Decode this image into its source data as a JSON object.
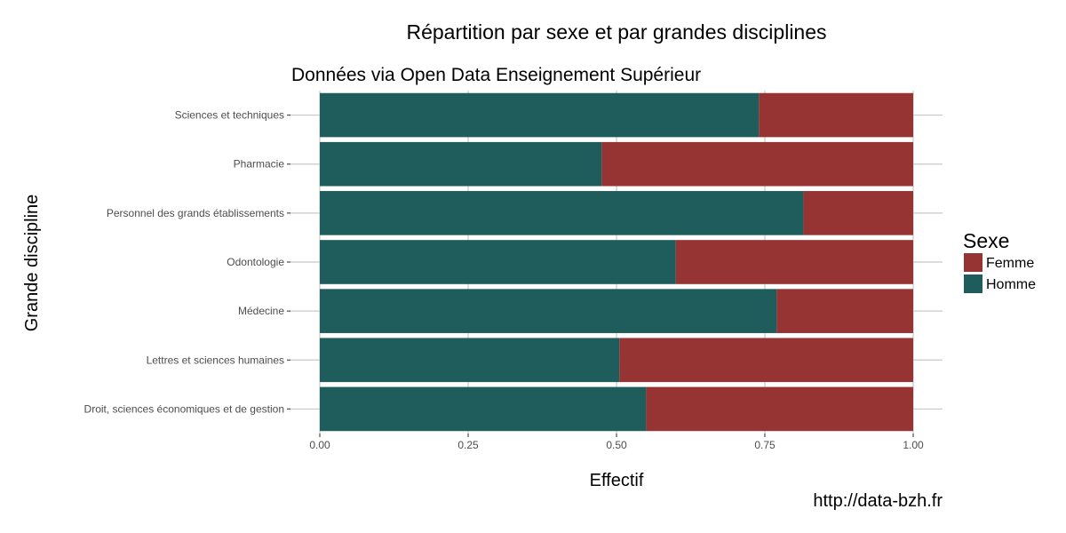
{
  "chart_data": {
    "type": "bar",
    "orientation": "horizontal",
    "stacked": true,
    "title": "Répartition par sexe et par grandes disciplines",
    "subtitle": "Données via Open Data Enseignement Supérieur",
    "xlabel": "Effectif",
    "ylabel": "Grande discipline",
    "xlim": [
      0,
      1
    ],
    "x_ticks": [
      "0.00",
      "0.25",
      "0.50",
      "0.75",
      "1.00"
    ],
    "x_tick_values": [
      0,
      0.25,
      0.5,
      0.75,
      1.0
    ],
    "categories": [
      "Sciences et techniques",
      "Pharmacie",
      "Personnel des grands établissements",
      "Odontologie",
      "Médecine",
      "Lettres et sciences humaines",
      "Droit, sciences économiques et de gestion"
    ],
    "series": [
      {
        "name": "Homme",
        "color": "#1f5c5c",
        "values": [
          0.74,
          0.475,
          0.815,
          0.6,
          0.77,
          0.505,
          0.55
        ]
      },
      {
        "name": "Femme",
        "color": "#963333",
        "values": [
          0.26,
          0.525,
          0.185,
          0.4,
          0.23,
          0.495,
          0.45
        ]
      }
    ],
    "legend": {
      "title": "Sexe",
      "position": "right",
      "entries": [
        {
          "label": "Femme",
          "color": "#963333"
        },
        {
          "label": "Homme",
          "color": "#1f5c5c"
        }
      ]
    },
    "grid": true
  },
  "caption": "http://data-bzh.fr"
}
